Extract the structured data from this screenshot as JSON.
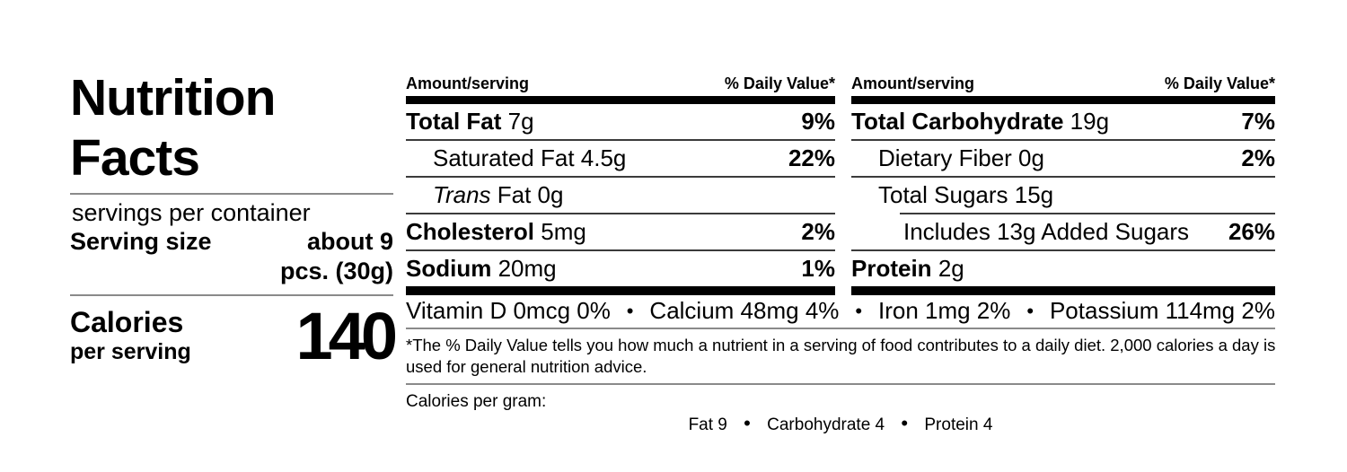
{
  "panel": {
    "title_line1": "Nutrition",
    "title_line2": "Facts",
    "servings_text": "servings per container",
    "serving_size_label": "Serving size",
    "serving_size_value_line1": "about 9",
    "serving_size_value_line2": "pcs. (30g)",
    "calories_label": "Calories",
    "calories_sublabel": "per serving",
    "calories_value": "140"
  },
  "table": {
    "columns": [
      {
        "header_amount": "Amount/serving",
        "header_dv": "% Daily Value*",
        "rows": [
          {
            "bold": "Total Fat",
            "italic": "",
            "rest": "7g",
            "dv": "9%"
          },
          {
            "bold": "",
            "italic": "",
            "rest": "Saturated Fat 4.5g",
            "dv": "22%"
          },
          {
            "bold": "",
            "italic": "Trans",
            "rest": "Fat 0g",
            "dv": ""
          },
          {
            "bold": "Cholesterol",
            "italic": "",
            "rest": "5mg",
            "dv": "2%"
          },
          {
            "bold": "Sodium",
            "italic": "",
            "rest": "20mg",
            "dv": "1%"
          }
        ]
      },
      {
        "header_amount": "Amount/serving",
        "header_dv": "% Daily Value*",
        "rows": [
          {
            "bold": "Total Carbohydrate",
            "italic": "",
            "rest": "19g",
            "dv": "7%"
          },
          {
            "bold": "",
            "italic": "",
            "rest": "Dietary Fiber 0g",
            "dv": "2%"
          },
          {
            "bold": "",
            "italic": "",
            "rest": "Total Sugars 15g",
            "dv": ""
          },
          {
            "bold": "",
            "italic": "",
            "rest": "Includes 13g Added Sugars",
            "dv": "26%"
          },
          {
            "bold": "Protein",
            "italic": "",
            "rest": "2g",
            "dv": ""
          }
        ]
      }
    ]
  },
  "micronutrients": {
    "separator": "•",
    "items": [
      "Vitamin D 0mcg 0%",
      "Calcium 48mg 4%",
      "Iron 1mg 2%",
      "Potassium 114mg 2%"
    ]
  },
  "footnote": "*The % Daily Value tells you how much a nutrient in a serving of food contributes to a daily diet. 2,000 calories a day is used for general nutrition advice.",
  "calories_per_gram": {
    "label": "Calories per gram:",
    "separator": "•",
    "items": [
      "Fat 9",
      "Carbohydrate 4",
      "Protein 4"
    ]
  },
  "colors": {
    "text": "#000000",
    "thick_bar": "#000000",
    "section_rule": "#8a8a8a",
    "row_rule": "#3b3b3b",
    "background": "#ffffff"
  }
}
